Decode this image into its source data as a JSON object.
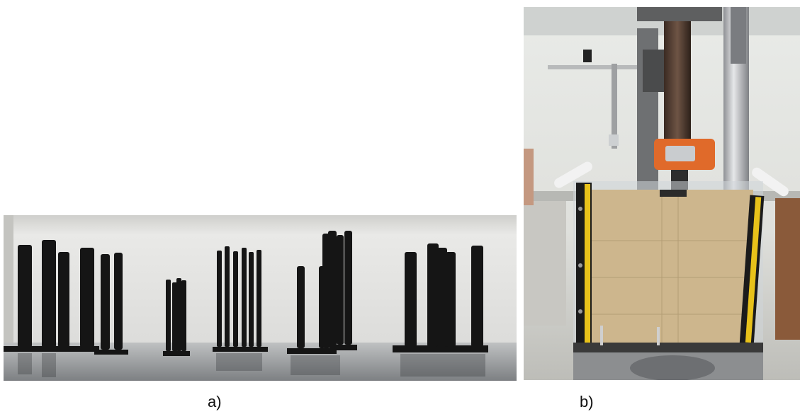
{
  "figure": {
    "panels": [
      {
        "id": "a",
        "caption": "a)",
        "content": "photo-rod-arrays"
      },
      {
        "id": "b",
        "caption": "b)",
        "content": "photo-soil-box-test-rig"
      }
    ]
  },
  "colors": {
    "rod": "#151515",
    "wall": "#d9d9d6",
    "floor": "#8f9294",
    "sand": "#cdb68d",
    "actuator_orange": "#e06a2a",
    "ruler_yellow": "#e8c21a"
  }
}
